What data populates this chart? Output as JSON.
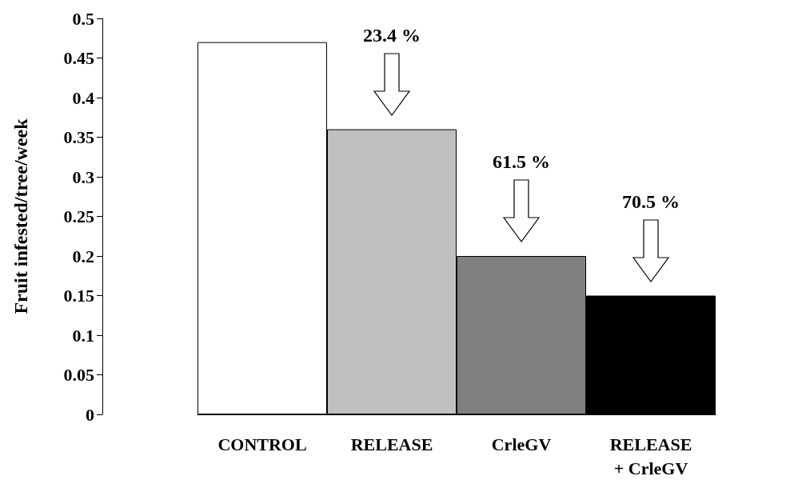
{
  "chart_data": {
    "type": "bar",
    "ylabel": "Fruit infested/tree/week",
    "categories": [
      "CONTROL",
      "RELEASE",
      "CrleGV",
      "RELEASE\n+ CrleGV"
    ],
    "values": [
      0.47,
      0.36,
      0.2,
      0.15
    ],
    "colors": [
      "#ffffff",
      "#c0c0c0",
      "#808080",
      "#000000"
    ],
    "ylim": [
      0,
      0.5
    ],
    "yticks": [
      0,
      0.05,
      0.1,
      0.15,
      0.2,
      0.25,
      0.3,
      0.35,
      0.4,
      0.45,
      0.5
    ],
    "grid": false,
    "annotations": [
      "23.4 %",
      "61.5 %",
      "70.5 %"
    ]
  }
}
